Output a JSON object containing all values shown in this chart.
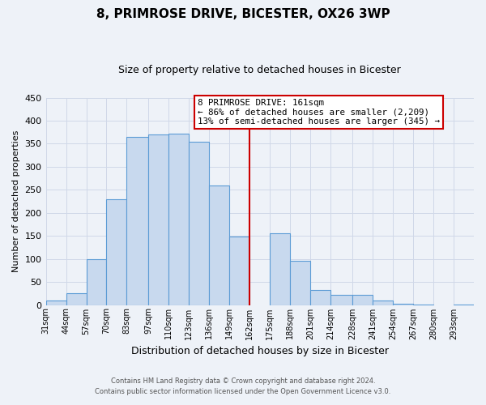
{
  "title": "8, PRIMROSE DRIVE, BICESTER, OX26 3WP",
  "subtitle": "Size of property relative to detached houses in Bicester",
  "xlabel": "Distribution of detached houses by size in Bicester",
  "ylabel": "Number of detached properties",
  "footnote1": "Contains HM Land Registry data © Crown copyright and database right 2024.",
  "footnote2": "Contains public sector information licensed under the Open Government Licence v3.0.",
  "bin_labels": [
    "31sqm",
    "44sqm",
    "57sqm",
    "70sqm",
    "83sqm",
    "97sqm",
    "110sqm",
    "123sqm",
    "136sqm",
    "149sqm",
    "162sqm",
    "175sqm",
    "188sqm",
    "201sqm",
    "214sqm",
    "228sqm",
    "241sqm",
    "254sqm",
    "267sqm",
    "280sqm",
    "293sqm"
  ],
  "bar_values": [
    10,
    25,
    100,
    230,
    365,
    370,
    372,
    355,
    260,
    148,
    0,
    155,
    95,
    32,
    22,
    22,
    10,
    3,
    1,
    0,
    1
  ],
  "bin_edges": [
    31,
    44,
    57,
    70,
    83,
    97,
    110,
    123,
    136,
    149,
    162,
    175,
    188,
    201,
    214,
    228,
    241,
    254,
    267,
    280,
    293,
    306
  ],
  "bar_color": "#c8d9ee",
  "bar_edge_color": "#5b9bd5",
  "vline_x": 162,
  "vline_color": "#cc0000",
  "ylim": [
    0,
    450
  ],
  "yticks": [
    0,
    50,
    100,
    150,
    200,
    250,
    300,
    350,
    400,
    450
  ],
  "grid_color": "#d0d8e8",
  "bg_color": "#eef2f8",
  "annotation_title": "8 PRIMROSE DRIVE: 161sqm",
  "annotation_line1": "← 86% of detached houses are smaller (2,209)",
  "annotation_line2": "13% of semi-detached houses are larger (345) →"
}
